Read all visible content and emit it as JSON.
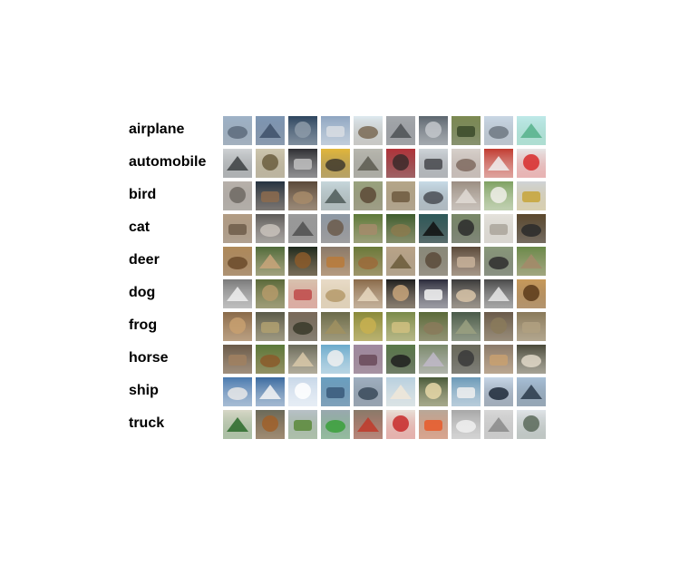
{
  "classes": [
    {
      "label": "airplane",
      "colors": [
        [
          "#9fb3c8",
          "#5d6b7c"
        ],
        [
          "#7f97b4",
          "#3e5069"
        ],
        [
          "#2f4660",
          "#8c9aa8"
        ],
        [
          "#8fa6c2",
          "#d8dde3"
        ],
        [
          "#dde8ef",
          "#7a6a55"
        ],
        [
          "#a5a8ad",
          "#4e5155"
        ],
        [
          "#5d676f",
          "#c3c7cb"
        ],
        [
          "#7c8a53",
          "#3b4a2a"
        ],
        [
          "#c9d7e5",
          "#6f7882"
        ],
        [
          "#bfe9e8",
          "#56b28b"
        ]
      ]
    },
    {
      "label": "automobile",
      "colors": [
        [
          "#cfd2d4",
          "#3c3f42"
        ],
        [
          "#cfc7b0",
          "#6b5e3e"
        ],
        [
          "#2e2f32",
          "#c1c1c1"
        ],
        [
          "#e2b73c",
          "#3f3a2e"
        ],
        [
          "#b8b8b0",
          "#5c5a50"
        ],
        [
          "#b2343a",
          "#3b2a2a"
        ],
        [
          "#cfd4da",
          "#46484c"
        ],
        [
          "#d8d1cb",
          "#7f6a5f"
        ],
        [
          "#c23b30",
          "#f0f0f0"
        ],
        [
          "#e6e6e6",
          "#d72b2b"
        ]
      ]
    },
    {
      "label": "bird",
      "colors": [
        [
          "#b7b1ab",
          "#6e6963"
        ],
        [
          "#253341",
          "#8c6b4d"
        ],
        [
          "#5a4a3a",
          "#a78b6a"
        ],
        [
          "#c7d7dc",
          "#4f5c59"
        ],
        [
          "#9aa37e",
          "#5c4a36"
        ],
        [
          "#b5a789",
          "#6e5b3f"
        ],
        [
          "#c8dbe7",
          "#4a4e55"
        ],
        [
          "#9b8e82",
          "#e0dbd5"
        ],
        [
          "#7fa262",
          "#f0efe9"
        ],
        [
          "#cfd3d6",
          "#c7a43a"
        ],
        [
          "#4f6a3c",
          "#8b5a2b"
        ]
      ]
    },
    {
      "label": "cat",
      "colors": [
        [
          "#b39d84",
          "#6f5d4a"
        ],
        [
          "#5e5b58",
          "#c8c2bb"
        ],
        [
          "#9c9c9c",
          "#4f4f4f"
        ],
        [
          "#8e9aa6",
          "#6b5a4b"
        ],
        [
          "#5e7a3a",
          "#a58b6b"
        ],
        [
          "#3f5e2e",
          "#8b7a4d"
        ],
        [
          "#2e5a5a",
          "#111111"
        ],
        [
          "#7a8a68",
          "#2b2b2b"
        ],
        [
          "#e5e2dc",
          "#aaa49b"
        ],
        [
          "#5e4a2e",
          "#2a2a2a"
        ]
      ]
    },
    {
      "label": "deer",
      "colors": [
        [
          "#b08a5a",
          "#6b4a2a"
        ],
        [
          "#4f6a3a",
          "#c9a57a"
        ],
        [
          "#1e2b1e",
          "#8b5a2a"
        ],
        [
          "#8a7a6a",
          "#b87a3a"
        ],
        [
          "#6a7a3a",
          "#9b6a3a"
        ],
        [
          "#bba58a",
          "#6b5a3a"
        ],
        [
          "#8a8a7a",
          "#5a4a3a"
        ],
        [
          "#5a4a3a",
          "#c8b29a"
        ],
        [
          "#8a9a7a",
          "#2e2e2e"
        ],
        [
          "#6a8a4a",
          "#a48a6a"
        ]
      ]
    },
    {
      "label": "dog",
      "colors": [
        [
          "#7a7a7a",
          "#f0f0f0"
        ],
        [
          "#5a6a3a",
          "#b59a6a"
        ],
        [
          "#d9c4b0",
          "#c04a4a"
        ],
        [
          "#e8dcc8",
          "#b59a6a"
        ],
        [
          "#8a6a4a",
          "#e8d8c0"
        ],
        [
          "#1e1e1e",
          "#c8a57a"
        ],
        [
          "#2a2a3a",
          "#f5f5f5"
        ],
        [
          "#3a3a3a",
          "#d8c4a8"
        ],
        [
          "#4a4a4a",
          "#e8e8e8"
        ],
        [
          "#c89a5a",
          "#5a3a1a"
        ]
      ]
    },
    {
      "label": "frog",
      "colors": [
        [
          "#8a6a4a",
          "#c8a070"
        ],
        [
          "#5a5a4a",
          "#b0a070"
        ],
        [
          "#7a6a5a",
          "#3a3a2a"
        ],
        [
          "#6a6a4a",
          "#a09060"
        ],
        [
          "#8a8a3a",
          "#c8b050"
        ],
        [
          "#7a8a4a",
          "#d0c080"
        ],
        [
          "#5a6a3a",
          "#8a7a5a"
        ],
        [
          "#4a5a4a",
          "#9aa080"
        ],
        [
          "#6a5a4a",
          "#8a7a5a"
        ],
        [
          "#8a7a5a",
          "#b0a080"
        ]
      ]
    },
    {
      "label": "horse",
      "colors": [
        [
          "#6a5a4a",
          "#a08060"
        ],
        [
          "#5a7a3a",
          "#8b5a2a"
        ],
        [
          "#6a6a5a",
          "#d8c8a8"
        ],
        [
          "#6aaacc",
          "#f0f0f0"
        ],
        [
          "#a08aa0",
          "#6a4a5a"
        ],
        [
          "#5a7a4a",
          "#1e1e1e"
        ],
        [
          "#7a8a6a",
          "#c0b8c8"
        ],
        [
          "#6a6a5a",
          "#3a3a3a"
        ],
        [
          "#8a7a6a",
          "#c8a070"
        ],
        [
          "#4a4a3a",
          "#e0d8c8"
        ]
      ]
    },
    {
      "label": "ship",
      "colors": [
        [
          "#4a7ab0",
          "#e8e8e8"
        ],
        [
          "#3a6aa0",
          "#f5f5f5"
        ],
        [
          "#c8d8e8",
          "#ffffff"
        ],
        [
          "#6aa0c0",
          "#3a5a7a"
        ],
        [
          "#a0b0c0",
          "#3a4a5a"
        ],
        [
          "#b8d0e0",
          "#f0e8d8"
        ],
        [
          "#4a5a3a",
          "#e8d8a8"
        ],
        [
          "#6a9ab8",
          "#f0f0f0"
        ],
        [
          "#c8d8e8",
          "#1e2a3a"
        ],
        [
          "#a8c0d8",
          "#2a3a4a"
        ]
      ]
    },
    {
      "label": "truck",
      "colors": [
        [
          "#d8d8c8",
          "#2a6a2a"
        ],
        [
          "#6a6a5a",
          "#a0602a"
        ],
        [
          "#b8c0c8",
          "#5a8a3a"
        ],
        [
          "#9aa8b0",
          "#3aa03a"
        ],
        [
          "#8a7a6a",
          "#c03a2a"
        ],
        [
          "#e8e0d8",
          "#c82a2a"
        ],
        [
          "#b8a898",
          "#e85a2a"
        ],
        [
          "#a8a8a8",
          "#f0f0f0"
        ],
        [
          "#d8d8d8",
          "#8a8a8a"
        ],
        [
          "#e0e4e8",
          "#5a6a5a"
        ]
      ]
    }
  ]
}
